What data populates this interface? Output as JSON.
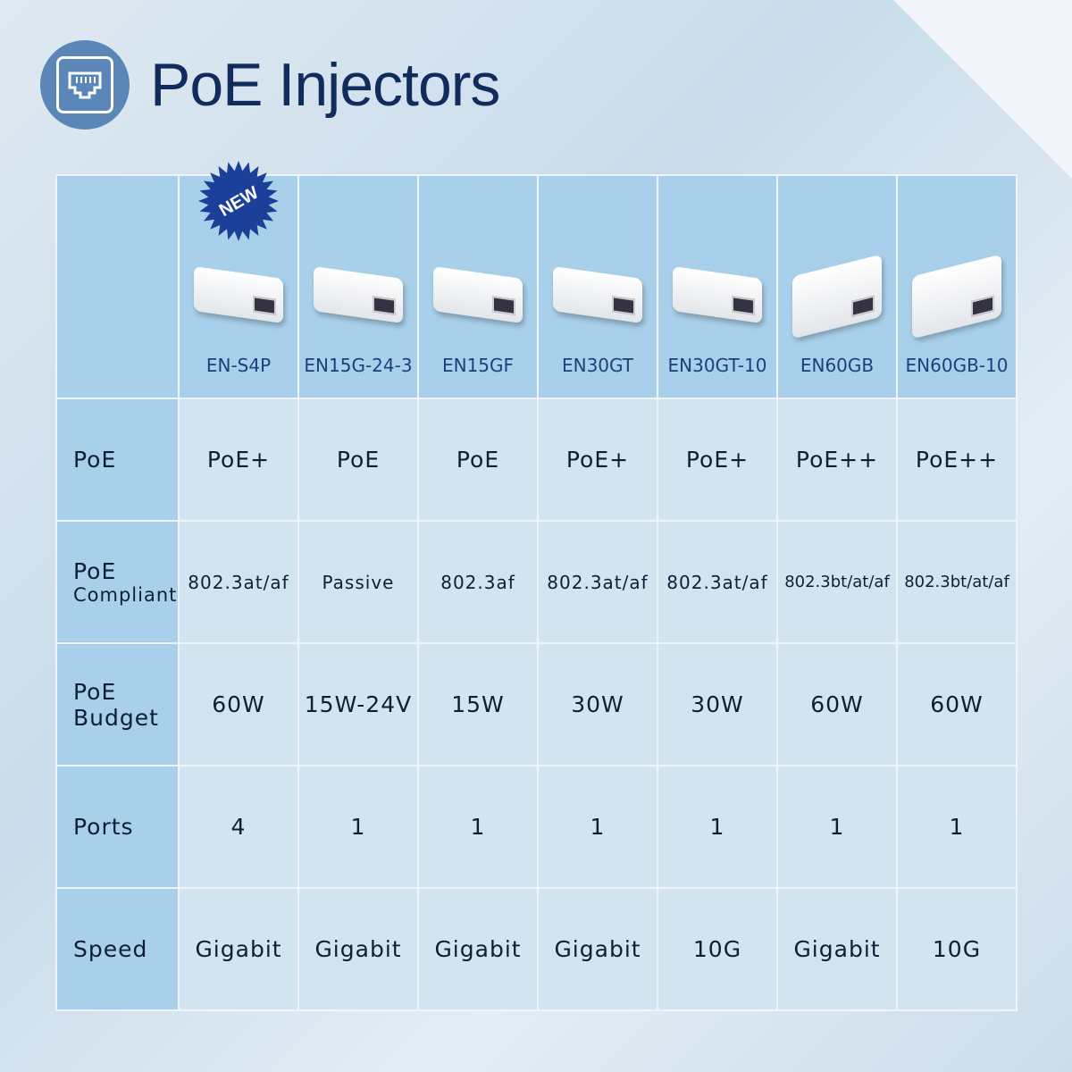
{
  "title": "PoE Injectors",
  "badge": "NEW",
  "products": [
    {
      "model": "EN-S4P",
      "poe": "PoE+",
      "compliant": "802.3at/af",
      "budget": "60W",
      "ports": "4",
      "speed": "Gigabit"
    },
    {
      "model": "EN15G-24-3",
      "poe": "PoE",
      "compliant": "Passive",
      "budget": "15W-24V",
      "ports": "1",
      "speed": "Gigabit"
    },
    {
      "model": "EN15GF",
      "poe": "PoE",
      "compliant": "802.3af",
      "budget": "15W",
      "ports": "1",
      "speed": "Gigabit"
    },
    {
      "model": "EN30GT",
      "poe": "PoE+",
      "compliant": "802.3at/af",
      "budget": "30W",
      "ports": "1",
      "speed": "Gigabit"
    },
    {
      "model": "EN30GT-10",
      "poe": "PoE+",
      "compliant": "802.3at/af",
      "budget": "30W",
      "ports": "1",
      "speed": "10G"
    },
    {
      "model": "EN60GB",
      "poe": "PoE++",
      "compliant": "802.3bt/at/af",
      "budget": "60W",
      "ports": "1",
      "speed": "Gigabit"
    },
    {
      "model": "EN60GB-10",
      "poe": "PoE++",
      "compliant": "802.3bt/at/af",
      "budget": "60W",
      "ports": "1",
      "speed": "10G"
    }
  ],
  "rows": {
    "poe": "PoE",
    "compliant_1": "PoE",
    "compliant_2": "Compliant",
    "budget_1": "PoE",
    "budget_2": "Budget",
    "ports": "Ports",
    "speed": "Speed"
  }
}
